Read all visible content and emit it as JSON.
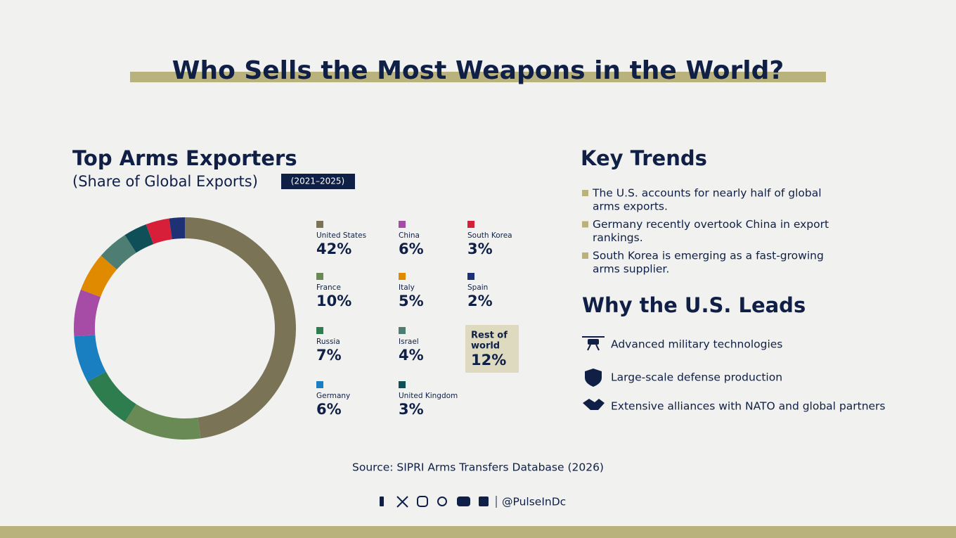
{
  "title": "Who Sells the Most Weapons in the World?",
  "chart_data": {
    "type": "donut",
    "title": "Top Arms Exporters",
    "subtitle": "(Share of Global Exports)",
    "period": "(2021–2025)",
    "categories": [
      "United States",
      "France",
      "Russia",
      "Germany",
      "China",
      "Italy",
      "Israel",
      "United Kingdom",
      "South Korea",
      "Spain"
    ],
    "values": [
      42,
      10,
      7,
      6,
      6,
      5,
      4,
      3,
      3,
      2
    ],
    "value_labels": [
      "42%",
      "10%",
      "7%",
      "6%",
      "6%",
      "5%",
      "4%",
      "3%",
      "3%",
      "2%"
    ],
    "colors": [
      "#7a7356",
      "#6a8a55",
      "#2e7d4f",
      "#1a7fc1",
      "#a64ca6",
      "#e08a00",
      "#4e7d74",
      "#0f4f58",
      "#d81f3a",
      "#1f3175"
    ],
    "rest": {
      "name_line1": "Rest of",
      "name_line2": "world",
      "value": 12,
      "value_label": "12%"
    }
  },
  "trends": {
    "title": "Key Trends",
    "items": [
      [
        "The U.S. accounts for nearly half of global",
        "arms exports."
      ],
      [
        "Germany recently overtook China in export",
        "rankings."
      ],
      [
        "South Korea is emerging as a fast-growing",
        "arms supplier."
      ]
    ]
  },
  "leads": {
    "title": "Why the U.S. Leads",
    "items": [
      "Advanced military technologies",
      "Large-scale defense production",
      "Extensive alliances with NATO and global partners"
    ]
  },
  "source": "Source: SIPRI Arms Transfers Database (2026)",
  "handle": "@PulseInDc"
}
